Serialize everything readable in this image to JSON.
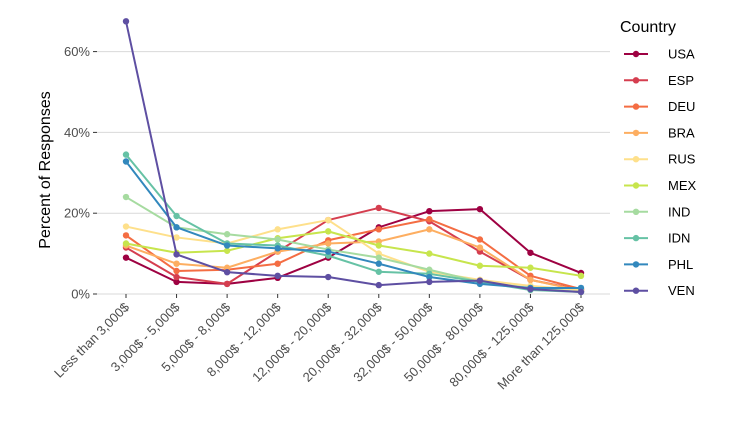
{
  "chart_data": {
    "type": "line",
    "title": "",
    "xlabel": "",
    "ylabel": "Percent of Responses",
    "ylim": [
      0,
      67
    ],
    "yticks": [
      0,
      20,
      40,
      60
    ],
    "ytick_labels": [
      "0%",
      "20%",
      "40%",
      "60%"
    ],
    "grid": true,
    "legend_placement": "right",
    "legend_title": "Country",
    "categories": [
      "Less than 3,000$",
      "3,000$ - 5,000$",
      "5,000$ - 8,000$",
      "8,000$ - 12,000$",
      "12,000$ - 20,000$",
      "20,000$ - 32,000$",
      "32,000$ - 50,000$",
      "50,000$ - 80,000$",
      "80,000$ - 125,000$",
      "More than 125,000$"
    ],
    "series": [
      {
        "name": "USA",
        "color": "#9E0142",
        "values": [
          9.0,
          3.0,
          2.5,
          4.0,
          9.0,
          16.5,
          20.5,
          21.0,
          10.2,
          5.2
        ]
      },
      {
        "name": "ESP",
        "color": "#D53E4F",
        "values": [
          11.5,
          4.2,
          2.5,
          10.5,
          18.3,
          21.3,
          18.0,
          10.5,
          3.5,
          1.0
        ]
      },
      {
        "name": "DEU",
        "color": "#F46D43",
        "values": [
          14.5,
          5.7,
          6.0,
          7.5,
          13.3,
          16.0,
          18.5,
          13.5,
          4.5,
          1.2
        ]
      },
      {
        "name": "BRA",
        "color": "#FDAE61",
        "values": [
          12.0,
          7.5,
          6.5,
          10.5,
          12.5,
          13.0,
          16.0,
          11.5,
          3.5,
          0.8
        ]
      },
      {
        "name": "RUS",
        "color": "#FEE08B",
        "values": [
          16.7,
          14.0,
          12.5,
          16.0,
          18.3,
          10.0,
          5.5,
          3.5,
          2.0,
          1.0
        ]
      },
      {
        "name": "MEX",
        "color": "#C7E54D",
        "values": [
          12.5,
          10.2,
          10.7,
          13.8,
          15.5,
          12.0,
          10.0,
          7.0,
          6.5,
          4.5
        ]
      },
      {
        "name": "IND",
        "color": "#A6DBA0",
        "values": [
          24.0,
          16.5,
          14.8,
          13.5,
          11.0,
          9.0,
          6.0,
          3.0,
          1.5,
          0.5
        ]
      },
      {
        "name": "IDN",
        "color": "#66C2A5",
        "values": [
          34.5,
          19.3,
          12.5,
          12.0,
          9.5,
          5.5,
          5.0,
          3.0,
          1.0,
          0.5
        ]
      },
      {
        "name": "PHL",
        "color": "#3288BD",
        "values": [
          32.8,
          16.5,
          12.0,
          11.3,
          10.5,
          7.5,
          4.2,
          2.5,
          1.5,
          1.5
        ]
      },
      {
        "name": "VEN",
        "color": "#5E4FA2",
        "values": [
          67.5,
          9.8,
          5.4,
          4.5,
          4.2,
          2.2,
          3.0,
          3.3,
          1.2,
          0.5
        ]
      }
    ]
  }
}
